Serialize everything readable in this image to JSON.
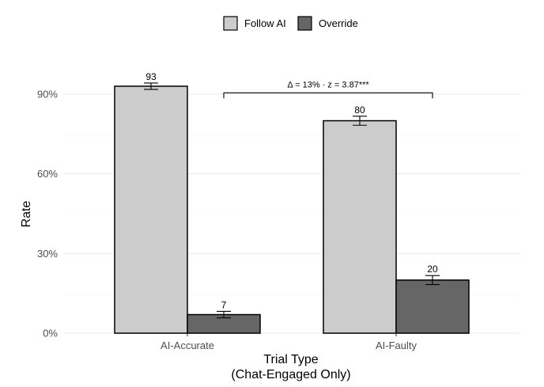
{
  "chart_data": {
    "type": "bar",
    "categories": [
      "AI-Accurate",
      "AI-Faulty"
    ],
    "series": [
      {
        "name": "Follow AI",
        "values": [
          93,
          80
        ],
        "error": [
          1.2,
          1.7
        ],
        "color": "#cccccc"
      },
      {
        "name": "Override",
        "values": [
          7,
          20
        ],
        "error": [
          1.2,
          1.7
        ],
        "color": "#666666"
      }
    ],
    "data_labels": [
      [
        "93",
        "80"
      ],
      [
        "7",
        "20"
      ]
    ],
    "xlabel": [
      "Trial Type",
      "(Chat-Engaged Only)"
    ],
    "ylabel": "Rate",
    "ylim": [
      0,
      100
    ],
    "yticks": [
      0,
      30,
      60,
      90
    ],
    "ytick_labels": [
      "0%",
      "30%",
      "60%",
      "90%"
    ],
    "legend_position": "top",
    "grid": "horizontal",
    "annotation": {
      "text": "Δ = 13% · z = 3.87***",
      "from_category": "AI-Accurate",
      "to_category": "AI-Faulty",
      "y": 90.5
    }
  }
}
